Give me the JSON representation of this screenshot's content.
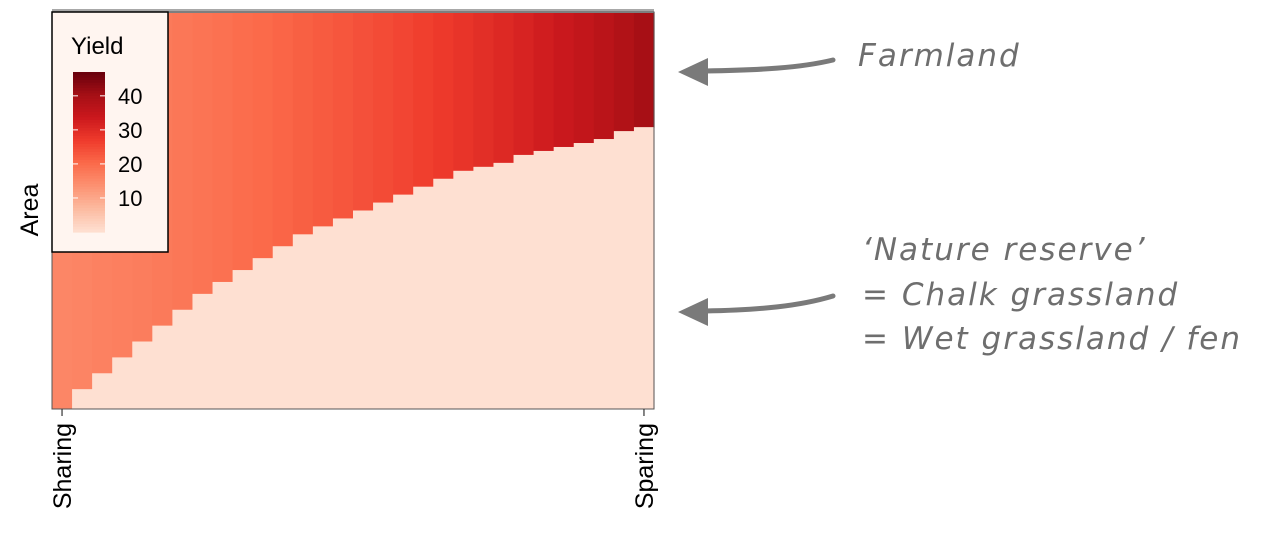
{
  "chart_data": {
    "type": "heatmap",
    "xlabel": "",
    "ylabel": "Area",
    "x_tick_labels": [
      "Sharing",
      "Sparing"
    ],
    "legend": {
      "title": "Yield",
      "ticks": [
        40,
        30,
        20,
        10
      ],
      "range": [
        0,
        47
      ],
      "placement": "top-left"
    },
    "columns": 30,
    "farmland_yield": [
      15.5,
      15.8,
      16.2,
      16.6,
      17.0,
      17.5,
      18.0,
      18.5,
      19.0,
      19.6,
      20.2,
      20.9,
      21.6,
      22.3,
      23.0,
      23.8,
      24.6,
      25.4,
      26.3,
      27.2,
      28.2,
      29.2,
      30.3,
      31.4,
      32.6,
      33.9,
      35.2,
      36.6,
      38.2,
      40.0
    ],
    "farmland_share": [
      0.0,
      0.05,
      0.09,
      0.13,
      0.17,
      0.21,
      0.25,
      0.29,
      0.32,
      0.35,
      0.38,
      0.41,
      0.44,
      0.46,
      0.48,
      0.5,
      0.52,
      0.54,
      0.56,
      0.58,
      0.6,
      0.61,
      0.62,
      0.64,
      0.65,
      0.66,
      0.67,
      0.68,
      0.7,
      0.71
    ],
    "reserve_yield": 0,
    "grid": false
  },
  "annotations": {
    "farmland": "Farmland",
    "reserve_line1": "‘Nature reserve’",
    "reserve_line2": "= Chalk grassland",
    "reserve_line3": "= Wet grassland / fen"
  },
  "colors": {
    "scale": [
      "#fee0d2",
      "#fcbba1",
      "#fc9272",
      "#fb6a4a",
      "#ef3b2c",
      "#cb181d",
      "#a50f15",
      "#67000d"
    ],
    "arrow": "#7a7a7a",
    "annotation_text": "#6e6e6e",
    "legend_bg": "#fff5f0"
  }
}
